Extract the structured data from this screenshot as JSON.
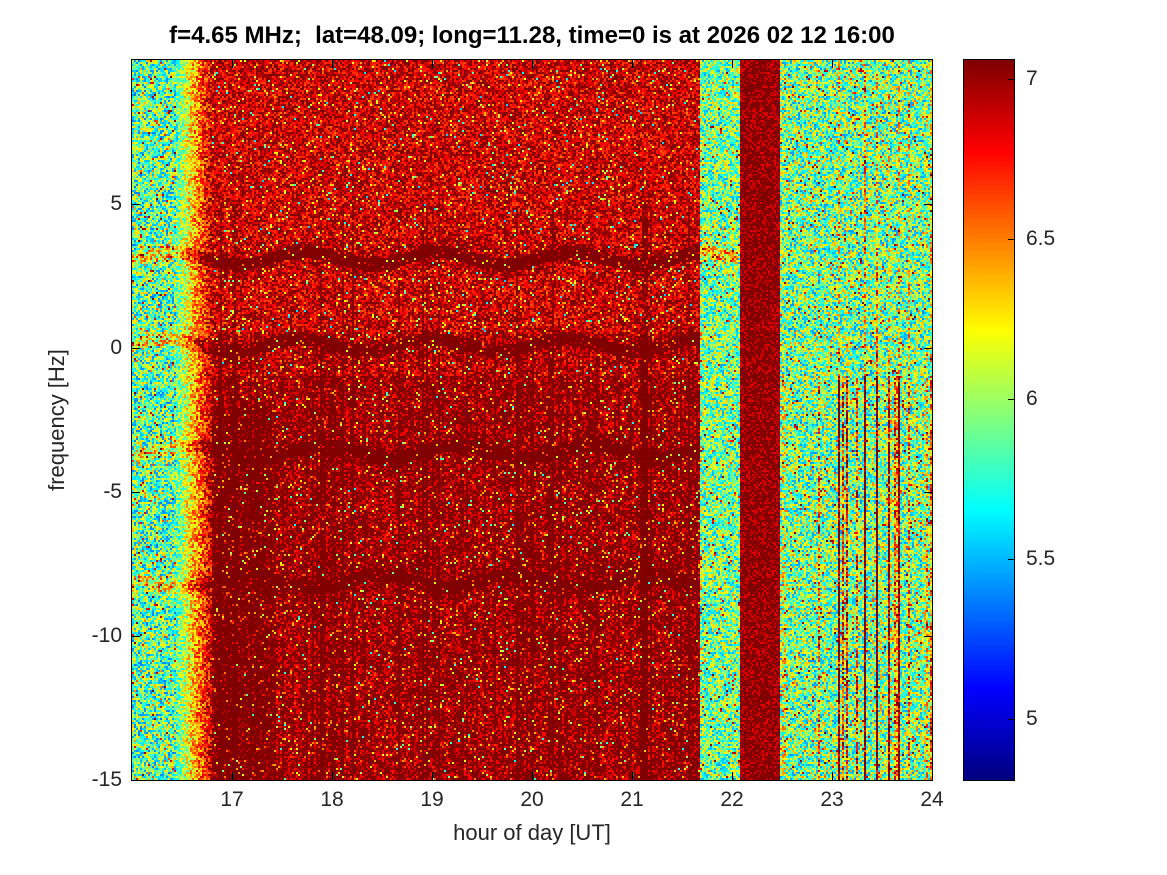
{
  "chart_data": {
    "type": "heatmap",
    "title": "f=4.65 MHz;  lat=48.09; long=11.28, time=0 is at 2026 02 12 16:00",
    "xlabel": "hour of day [UT]",
    "ylabel": "frequency [Hz]",
    "xlim": [
      16,
      24
    ],
    "ylim": [
      -15,
      10
    ],
    "x_ticks": [
      17,
      18,
      19,
      20,
      21,
      22,
      23,
      24
    ],
    "y_ticks": [
      5,
      0,
      -5,
      -10,
      -15
    ],
    "colormap": "jet",
    "color_axis": [
      4.81,
      7.06
    ],
    "colorbar_ticks": [
      7,
      6.5,
      6,
      5.5,
      5
    ],
    "grid": false,
    "title_color": "#000000",
    "axis_text_color": "#262626",
    "description": "Doppler spectrogram: received power (log scale, jet colormap) vs hour of day and Doppler frequency. Strong broadband red/dark-red activity from ~16.8 to ~21.7 UT, a quiet teal gap near 21.7-22.1 UT, an intense dark-red burst band ~22.1-22.5 UT, then quiet teal noise with sporadic red streaks until 24 UT. Dark horizontal carrier lines near +3, 0, -3.6 and -8 Hz.",
    "seed": 42,
    "regions": [
      {
        "h0": 16.0,
        "h1": 16.45,
        "base": 5.85,
        "noise": 0.5,
        "kind": "quiet"
      },
      {
        "h0": 16.45,
        "h1": 16.8,
        "base": 6.4,
        "noise": 0.35,
        "kind": "transition"
      },
      {
        "h0": 16.8,
        "h1": 21.68,
        "base": 6.9,
        "noise": 0.28,
        "kind": "active"
      },
      {
        "h0": 21.68,
        "h1": 22.08,
        "base": 5.9,
        "noise": 0.45,
        "kind": "quiet"
      },
      {
        "h0": 22.08,
        "h1": 22.48,
        "base": 7.05,
        "noise": 0.22,
        "kind": "burst"
      },
      {
        "h0": 22.48,
        "h1": 24.0,
        "base": 5.9,
        "noise": 0.5,
        "kind": "quiet2"
      }
    ],
    "lines": [
      {
        "f": 3.1,
        "h0": 16.0,
        "h1": 22.05,
        "s": 0.4
      },
      {
        "f": 0.1,
        "h0": 16.0,
        "h1": 21.7,
        "s": 0.32
      },
      {
        "f": -3.6,
        "h0": 16.0,
        "h1": 21.7,
        "s": 0.3
      },
      {
        "f": -8.1,
        "h0": 16.0,
        "h1": 21.7,
        "s": 0.3
      }
    ]
  }
}
